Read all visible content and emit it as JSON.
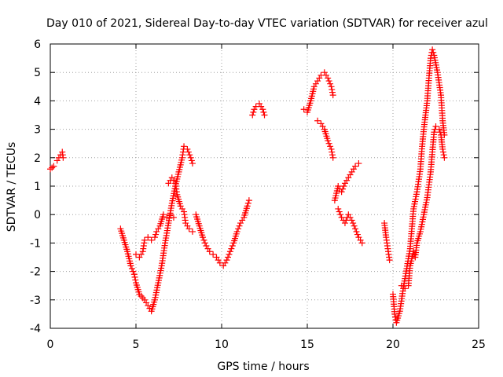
{
  "chart_data": {
    "type": "scatter",
    "title": "Day 010 of 2021, Sidereal Day-to-day VTEC variation (SDTVAR) for receiver azul",
    "xlabel": "GPS time / hours",
    "ylabel": "SDTVAR / TECUs",
    "xlim": [
      0,
      25
    ],
    "ylim": [
      -4,
      6
    ],
    "xticks": [
      "0",
      "5",
      "10",
      "15",
      "20",
      "25"
    ],
    "yticks": [
      "-4",
      "-3",
      "-2",
      "-1",
      "0",
      "1",
      "2",
      "3",
      "4",
      "5",
      "6"
    ],
    "grid": true,
    "marker": "plus",
    "color": "#ff0000",
    "segments": [
      [
        [
          0.0,
          1.6
        ],
        [
          0.1,
          1.65
        ],
        [
          0.2,
          1.7
        ]
      ],
      [
        [
          0.4,
          1.9
        ],
        [
          0.5,
          2.0
        ],
        [
          0.6,
          2.1
        ],
        [
          0.7,
          2.2
        ],
        [
          0.75,
          2.0
        ]
      ],
      [
        [
          4.1,
          -0.5
        ],
        [
          4.3,
          -0.9
        ],
        [
          4.5,
          -1.3
        ],
        [
          4.7,
          -1.8
        ],
        [
          4.9,
          -2.1
        ],
        [
          5.0,
          -2.4
        ],
        [
          5.2,
          -2.8
        ],
        [
          5.5,
          -3.0
        ],
        [
          5.7,
          -3.2
        ],
        [
          5.9,
          -3.4
        ],
        [
          6.1,
          -3.0
        ],
        [
          6.3,
          -2.4
        ],
        [
          6.5,
          -1.8
        ],
        [
          6.7,
          -1.0
        ],
        [
          6.9,
          -0.3
        ],
        [
          7.1,
          0.4
        ],
        [
          7.3,
          1.0
        ],
        [
          7.5,
          1.5
        ],
        [
          7.7,
          2.0
        ],
        [
          7.8,
          2.4
        ],
        [
          8.0,
          2.3
        ],
        [
          8.2,
          2.0
        ],
        [
          8.3,
          1.8
        ]
      ],
      [
        [
          5.0,
          -1.4
        ],
        [
          5.2,
          -1.5
        ],
        [
          5.4,
          -1.3
        ],
        [
          5.5,
          -0.9
        ],
        [
          5.7,
          -0.8
        ],
        [
          5.9,
          -0.9
        ],
        [
          6.1,
          -0.8
        ],
        [
          6.2,
          -0.6
        ],
        [
          6.4,
          -0.4
        ],
        [
          6.6,
          0.0
        ],
        [
          6.8,
          -0.1
        ],
        [
          7.0,
          0.0
        ],
        [
          7.2,
          -0.1
        ]
      ],
      [
        [
          6.9,
          1.1
        ],
        [
          7.1,
          1.3
        ],
        [
          7.3,
          1.1
        ],
        [
          7.4,
          0.7
        ],
        [
          7.6,
          0.3
        ],
        [
          7.8,
          0.1
        ],
        [
          7.9,
          -0.3
        ],
        [
          8.1,
          -0.5
        ],
        [
          8.3,
          -0.6
        ]
      ],
      [
        [
          8.5,
          0.0
        ],
        [
          8.7,
          -0.4
        ],
        [
          8.9,
          -0.8
        ],
        [
          9.1,
          -1.1
        ],
        [
          9.3,
          -1.3
        ],
        [
          9.5,
          -1.4
        ],
        [
          9.7,
          -1.5
        ],
        [
          9.9,
          -1.7
        ],
        [
          10.1,
          -1.8
        ],
        [
          10.3,
          -1.6
        ],
        [
          10.5,
          -1.3
        ],
        [
          10.7,
          -1.0
        ],
        [
          10.9,
          -0.6
        ],
        [
          11.1,
          -0.3
        ],
        [
          11.3,
          -0.1
        ],
        [
          11.5,
          0.3
        ],
        [
          11.6,
          0.5
        ]
      ],
      [
        [
          11.8,
          3.5
        ],
        [
          11.9,
          3.7
        ],
        [
          12.0,
          3.8
        ],
        [
          12.2,
          3.9
        ],
        [
          12.4,
          3.7
        ],
        [
          12.5,
          3.5
        ]
      ],
      [
        [
          14.8,
          3.7
        ],
        [
          15.0,
          3.6
        ],
        [
          15.2,
          4.0
        ],
        [
          15.4,
          4.5
        ],
        [
          15.6,
          4.7
        ],
        [
          15.8,
          4.9
        ],
        [
          16.0,
          5.0
        ],
        [
          16.2,
          4.8
        ],
        [
          16.4,
          4.5
        ],
        [
          16.5,
          4.2
        ]
      ],
      [
        [
          15.6,
          3.3
        ],
        [
          15.8,
          3.2
        ],
        [
          16.0,
          3.0
        ],
        [
          16.2,
          2.6
        ],
        [
          16.4,
          2.3
        ],
        [
          16.5,
          2.0
        ]
      ],
      [
        [
          16.6,
          0.5
        ],
        [
          16.8,
          1.0
        ],
        [
          17.0,
          0.8
        ],
        [
          17.2,
          1.1
        ],
        [
          17.4,
          1.3
        ],
        [
          17.6,
          1.5
        ],
        [
          17.8,
          1.7
        ],
        [
          18.0,
          1.8
        ]
      ],
      [
        [
          16.8,
          0.2
        ],
        [
          17.0,
          -0.1
        ],
        [
          17.2,
          -0.3
        ],
        [
          17.4,
          0.0
        ],
        [
          17.6,
          -0.2
        ],
        [
          17.8,
          -0.5
        ],
        [
          18.0,
          -0.8
        ],
        [
          18.2,
          -1.0
        ]
      ],
      [
        [
          19.5,
          -0.3
        ],
        [
          19.6,
          -0.8
        ],
        [
          19.7,
          -1.2
        ],
        [
          19.8,
          -1.6
        ]
      ],
      [
        [
          20.0,
          -2.8
        ],
        [
          20.1,
          -3.5
        ],
        [
          20.2,
          -3.8
        ],
        [
          20.4,
          -3.4
        ],
        [
          20.6,
          -2.6
        ],
        [
          20.8,
          -1.9
        ],
        [
          21.0,
          -1.2
        ],
        [
          21.1,
          -0.5
        ],
        [
          21.2,
          0.2
        ],
        [
          21.4,
          0.8
        ],
        [
          21.6,
          1.6
        ],
        [
          21.7,
          2.4
        ],
        [
          21.8,
          3.0
        ],
        [
          22.0,
          4.0
        ],
        [
          22.1,
          4.8
        ],
        [
          22.2,
          5.5
        ],
        [
          22.3,
          5.8
        ],
        [
          22.4,
          5.6
        ],
        [
          22.6,
          5.0
        ],
        [
          22.8,
          4.2
        ],
        [
          22.9,
          3.3
        ],
        [
          23.0,
          2.8
        ]
      ],
      [
        [
          20.5,
          -2.5
        ],
        [
          20.7,
          -2.6
        ],
        [
          20.9,
          -2.5
        ],
        [
          21.0,
          -1.8
        ],
        [
          21.2,
          -1.3
        ],
        [
          21.3,
          -1.5
        ],
        [
          21.4,
          -1.0
        ],
        [
          21.6,
          -0.6
        ],
        [
          21.8,
          0.0
        ],
        [
          22.0,
          0.6
        ],
        [
          22.2,
          1.5
        ],
        [
          22.3,
          2.2
        ],
        [
          22.4,
          2.9
        ],
        [
          22.5,
          3.1
        ],
        [
          22.7,
          3.0
        ],
        [
          22.8,
          2.8
        ],
        [
          22.9,
          2.3
        ],
        [
          23.0,
          2.0
        ]
      ]
    ]
  }
}
